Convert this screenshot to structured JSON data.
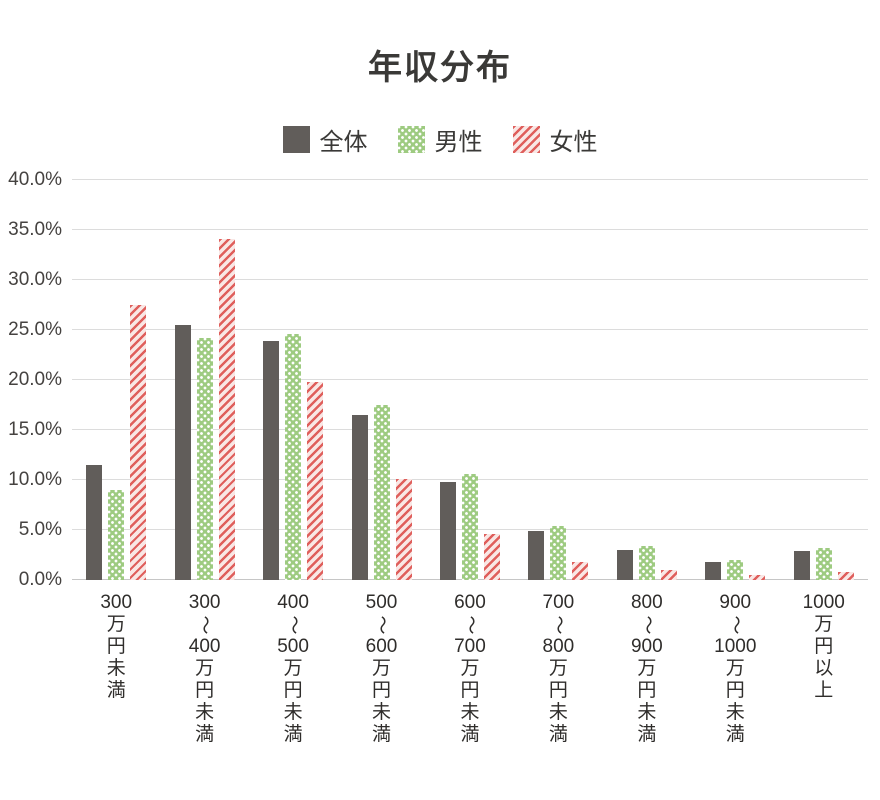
{
  "title": "年収分布",
  "legend": [
    {
      "label": "全体",
      "swatch": "solid-dark-gray"
    },
    {
      "label": "男性",
      "swatch": "green-white-dots"
    },
    {
      "label": "女性",
      "swatch": "red-diagonal-stripes"
    }
  ],
  "colors": {
    "overall_bar": "#615d5a",
    "male_bar_base": "#9ecb81",
    "female_stripe": "#df5f5c",
    "female_stripe_bg": "#f9e7e5",
    "gridline": "#dcdcdc",
    "baseline": "#c6c6c6",
    "title_text": "#3a3937",
    "axis_text": "#454240"
  },
  "chart_data": {
    "type": "bar",
    "title": "年収分布",
    "xlabel": "",
    "ylabel": "",
    "ylim": [
      0,
      40
    ],
    "grid": true,
    "legend_position": "top-center",
    "yticks": [
      "0.0%",
      "5.0%",
      "10.0%",
      "15.0%",
      "20.0%",
      "25.0%",
      "30.0%",
      "35.0%",
      "40.0%"
    ],
    "ytick_values": [
      0,
      5,
      10,
      15,
      20,
      25,
      30,
      35,
      40
    ],
    "categories": [
      "300万円未満",
      "300〜400万円未満",
      "400〜500万円未満",
      "500〜600万円未満",
      "600〜700万円未満",
      "700〜800万円未満",
      "800〜900万円未満",
      "900〜1000万円未満",
      "1000万円以上"
    ],
    "series": [
      {
        "name": "全体",
        "values": [
          11.5,
          25.5,
          23.9,
          16.5,
          9.8,
          4.9,
          3.0,
          1.8,
          2.9
        ]
      },
      {
        "name": "男性",
        "values": [
          9.0,
          24.2,
          24.6,
          17.5,
          10.6,
          5.4,
          3.4,
          2.0,
          3.2
        ]
      },
      {
        "name": "女性",
        "values": [
          27.5,
          34.1,
          19.8,
          10.1,
          4.6,
          1.8,
          1.0,
          0.5,
          0.8
        ]
      }
    ]
  }
}
